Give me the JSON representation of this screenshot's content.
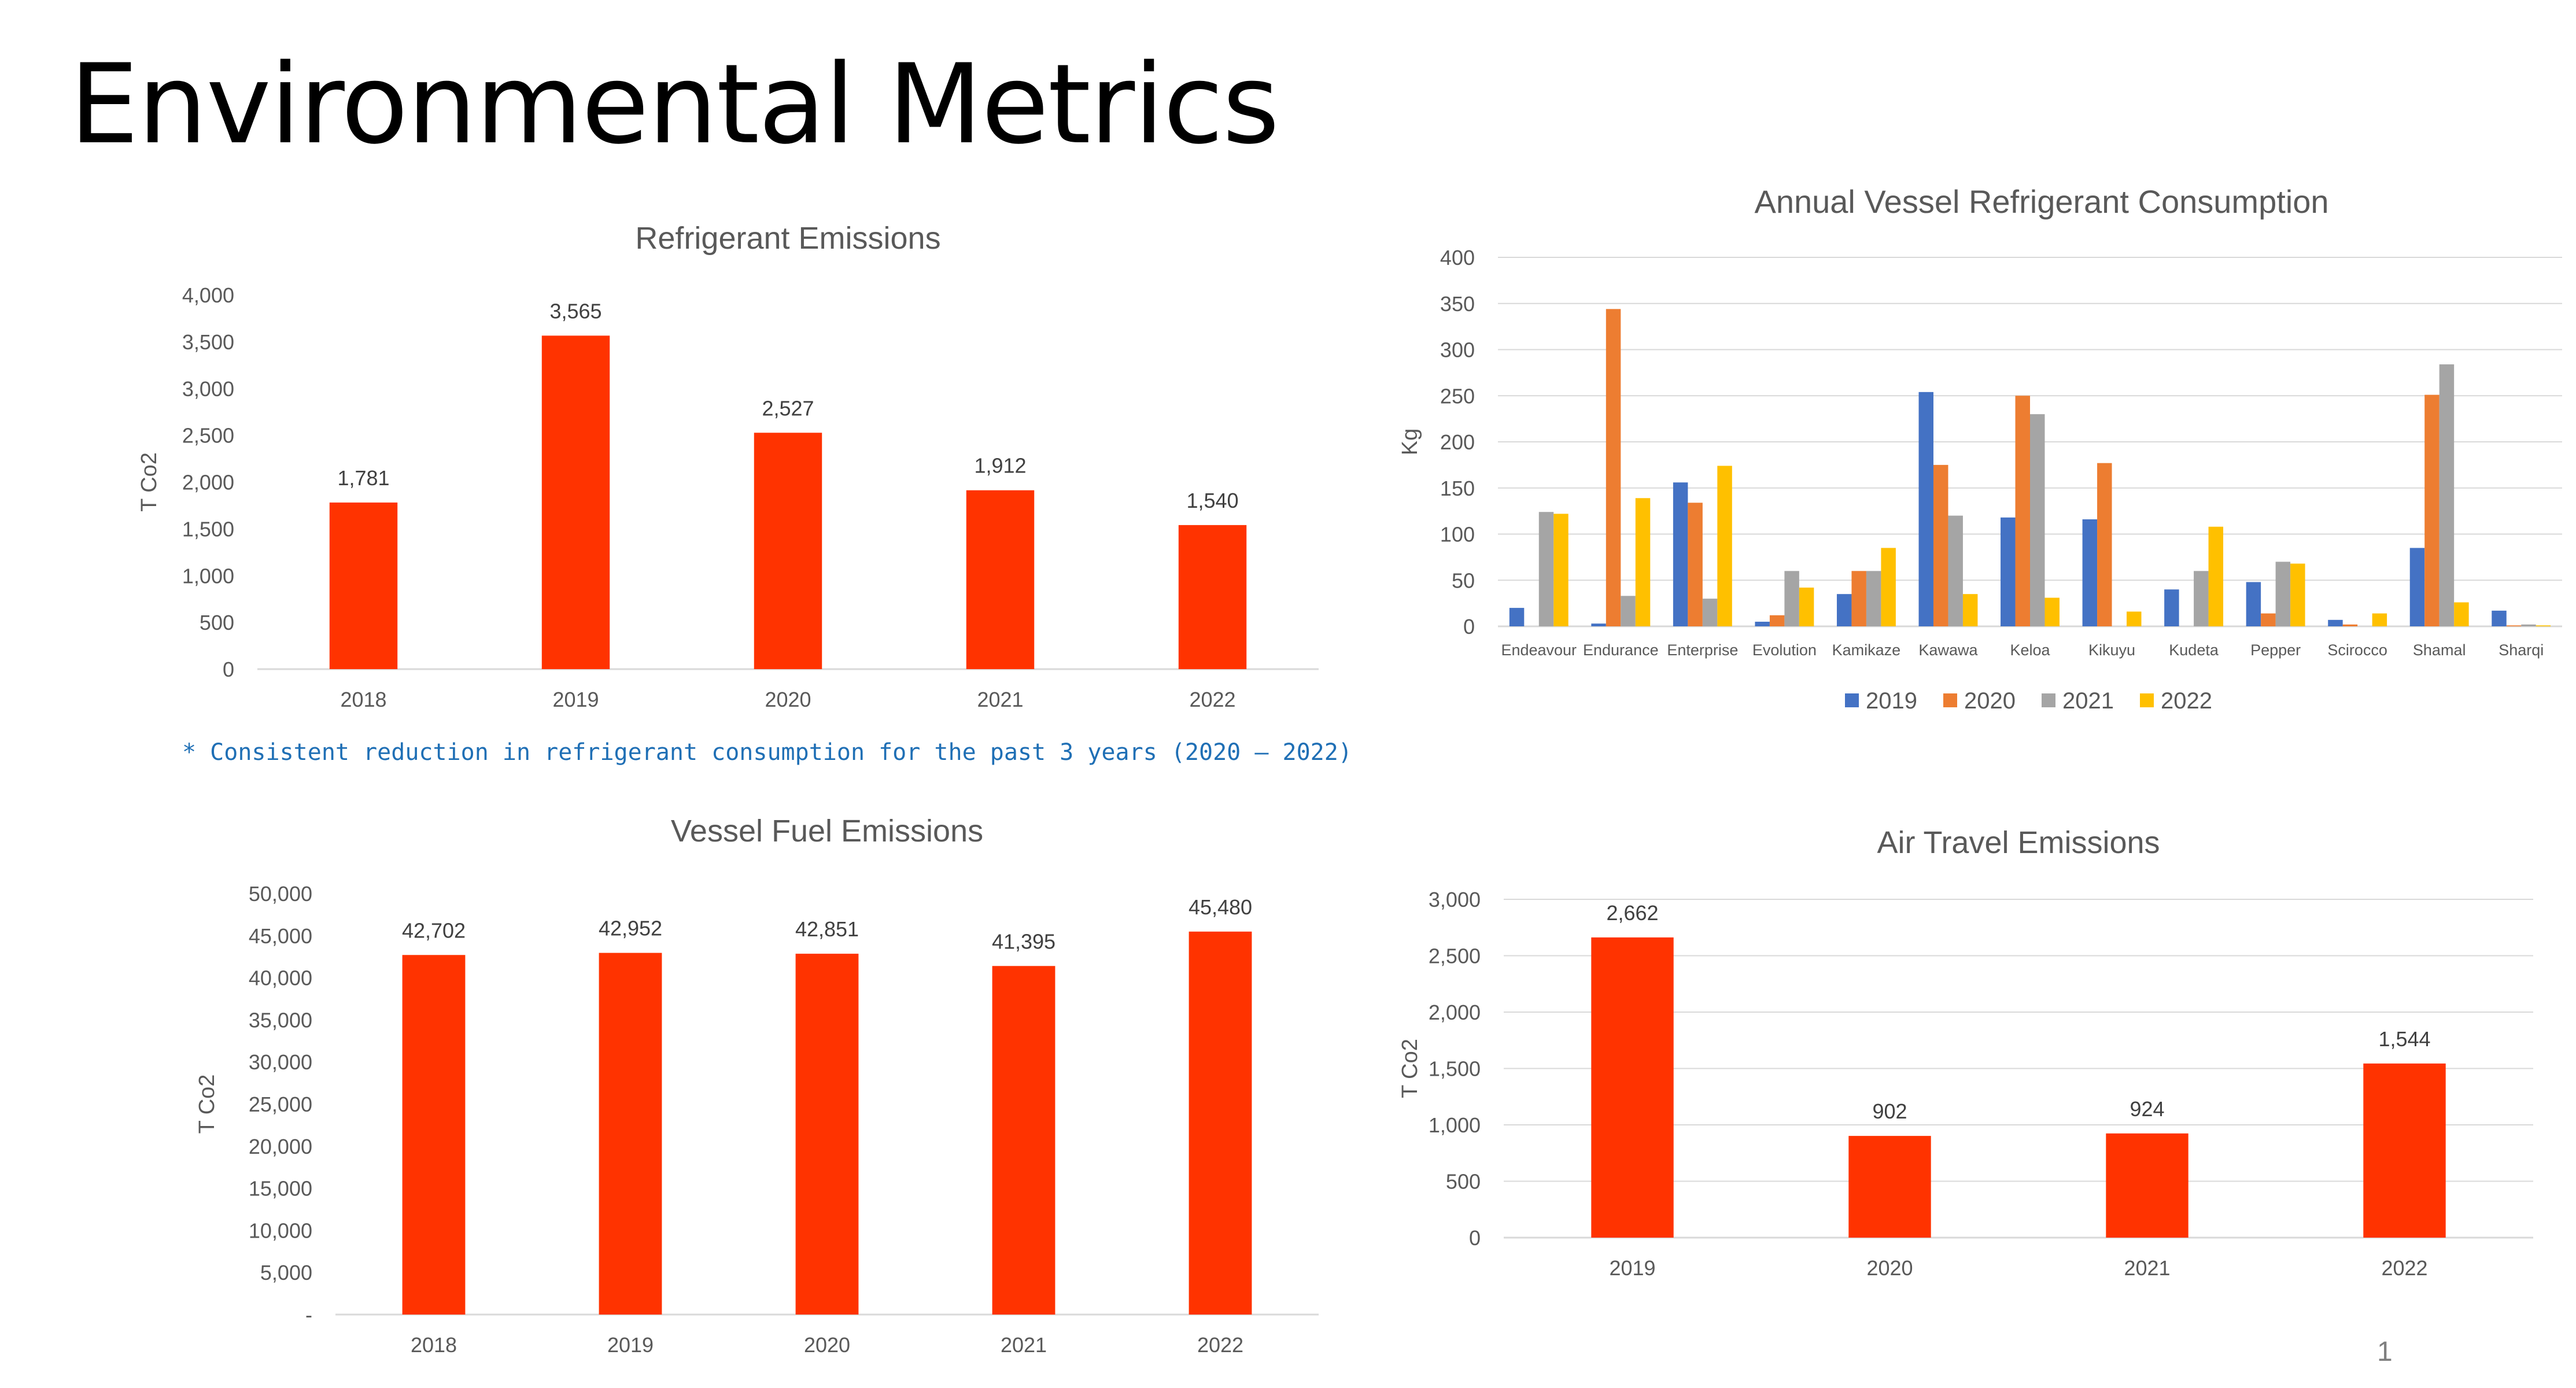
{
  "slide": {
    "title": "Environmental Metrics",
    "note": "* Consistent reduction in refrigerant consumption for the past 3 years (2020 – 2022)",
    "page_number": "1",
    "bar_color": "#ff3300"
  },
  "chart_data": [
    {
      "id": "refrigerant",
      "type": "bar",
      "title": "Refrigerant Emissions",
      "ylabel": "T Co2",
      "xlabel": "",
      "categories": [
        "2018",
        "2019",
        "2020",
        "2021",
        "2022"
      ],
      "values": [
        1781,
        3565,
        2527,
        1912,
        1540
      ],
      "data_labels": [
        "1,781",
        "3,565",
        "2,527",
        "1,912",
        "1,540"
      ],
      "ylim": [
        0,
        4000
      ],
      "yticks": [
        0,
        500,
        1000,
        1500,
        2000,
        2500,
        3000,
        3500,
        4000
      ],
      "ytick_labels": [
        "0",
        "500",
        "1,000",
        "1,500",
        "2,000",
        "2,500",
        "3,000",
        "3,500",
        "4,000"
      ],
      "grid": false,
      "color": "#ff3300"
    },
    {
      "id": "vessel-refrigerant",
      "type": "bar",
      "title": "Annual Vessel Refrigerant Consumption",
      "ylabel": "Kg",
      "xlabel": "",
      "categories": [
        "Endeavour",
        "Endurance",
        "Enterprise",
        "Evolution",
        "Kamikaze",
        "Kawawa",
        "Keloa",
        "Kikuyu",
        "Kudeta",
        "Pepper",
        "Scirocco",
        "Shamal",
        "Sharqi"
      ],
      "series": [
        {
          "name": "2019",
          "color": "#4472c4",
          "values": [
            20,
            3,
            156,
            5,
            35,
            254,
            118,
            116,
            40,
            48,
            7,
            85,
            17
          ]
        },
        {
          "name": "2020",
          "color": "#ed7d31",
          "values": [
            0,
            344,
            134,
            12,
            60,
            175,
            250,
            177,
            0,
            14,
            2,
            251,
            1
          ]
        },
        {
          "name": "2021",
          "color": "#a5a5a5",
          "values": [
            124,
            33,
            30,
            60,
            60,
            120,
            230,
            0,
            60,
            70,
            0,
            284,
            2
          ]
        },
        {
          "name": "2022",
          "color": "#ffc000",
          "values": [
            122,
            139,
            174,
            42,
            85,
            35,
            31,
            16,
            108,
            68,
            14,
            26,
            1
          ]
        }
      ],
      "ylim": [
        0,
        400
      ],
      "yticks": [
        0,
        50,
        100,
        150,
        200,
        250,
        300,
        350,
        400
      ],
      "ytick_labels": [
        "0",
        "50",
        "100",
        "150",
        "200",
        "250",
        "300",
        "350",
        "400"
      ],
      "grid": true,
      "legend": "bottom"
    },
    {
      "id": "vessel-fuel",
      "type": "bar",
      "title": "Vessel Fuel Emissions",
      "ylabel": "T Co2",
      "xlabel": "",
      "categories": [
        "2018",
        "2019",
        "2020",
        "2021",
        "2022"
      ],
      "values": [
        42702,
        42952,
        42851,
        41395,
        45480
      ],
      "data_labels": [
        "42,702",
        "42,952",
        "42,851",
        "41,395",
        "45,480"
      ],
      "ylim": [
        0,
        50000
      ],
      "yticks": [
        0,
        5000,
        10000,
        15000,
        20000,
        25000,
        30000,
        35000,
        40000,
        45000,
        50000
      ],
      "ytick_labels": [
        "-",
        "5,000",
        "10,000",
        "15,000",
        "20,000",
        "25,000",
        "30,000",
        "35,000",
        "40,000",
        "45,000",
        "50,000"
      ],
      "grid": false,
      "color": "#ff3300"
    },
    {
      "id": "air-travel",
      "type": "bar",
      "title": "Air Travel Emissions",
      "ylabel": "T Co2",
      "xlabel": "",
      "categories": [
        "2019",
        "2020",
        "2021",
        "2022"
      ],
      "values": [
        2662,
        902,
        924,
        1544
      ],
      "data_labels": [
        "2,662",
        "902",
        "924",
        "1,544"
      ],
      "ylim": [
        0,
        3000
      ],
      "yticks": [
        0,
        500,
        1000,
        1500,
        2000,
        2500,
        3000
      ],
      "ytick_labels": [
        "0",
        "500",
        "1,000",
        "1,500",
        "2,000",
        "2,500",
        "3,000"
      ],
      "grid": true,
      "color": "#ff3300"
    }
  ]
}
